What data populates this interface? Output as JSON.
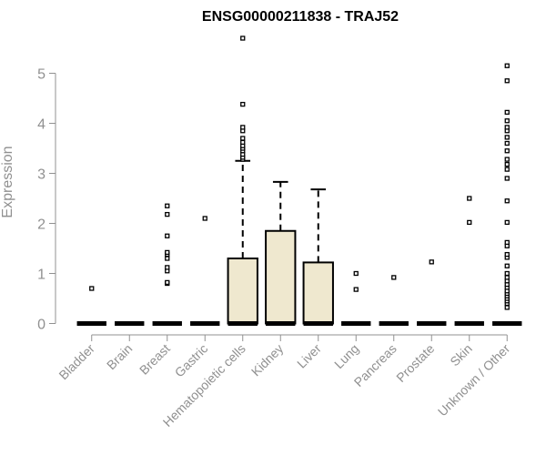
{
  "chart_data": {
    "type": "box",
    "title": "ENSG00000211838 - TRAJ52",
    "xlabel": "",
    "ylabel": "Expression",
    "ylim": [
      0,
      5.7
    ],
    "yticks": [
      0,
      1,
      2,
      3,
      4,
      5
    ],
    "grid": false,
    "legend": "none",
    "box_fill": "#efe8cf",
    "categories": [
      "Bladder",
      "Brain",
      "Breast",
      "Gastric",
      "Hematopoietic cells",
      "Kidney",
      "Liver",
      "Lung",
      "Pancreas",
      "Prostate",
      "Skin",
      "Unknown / Other"
    ],
    "boxes": [
      {
        "q1": 0,
        "median": 0,
        "q3": 0,
        "whisker_low": 0,
        "whisker_high": 0,
        "outliers": [
          0.7
        ]
      },
      {
        "q1": 0,
        "median": 0,
        "q3": 0,
        "whisker_low": 0,
        "whisker_high": 0,
        "outliers": []
      },
      {
        "q1": 0,
        "median": 0,
        "q3": 0,
        "whisker_low": 0,
        "whisker_high": 0,
        "outliers": [
          0.8,
          0.82,
          1.05,
          1.12,
          1.3,
          1.38,
          1.42,
          1.75,
          2.18,
          2.35
        ]
      },
      {
        "q1": 0,
        "median": 0,
        "q3": 0,
        "whisker_low": 0,
        "whisker_high": 0,
        "outliers": [
          2.1
        ]
      },
      {
        "q1": 0,
        "median": 0,
        "q3": 1.3,
        "whisker_low": 0,
        "whisker_high": 3.25,
        "outliers": [
          3.28,
          3.32,
          3.38,
          3.45,
          3.5,
          3.55,
          3.62,
          3.7,
          3.85,
          3.92,
          4.38,
          5.7
        ]
      },
      {
        "q1": 0,
        "median": 0,
        "q3": 1.85,
        "whisker_low": 0,
        "whisker_high": 2.83,
        "outliers": []
      },
      {
        "q1": 0,
        "median": 0,
        "q3": 1.22,
        "whisker_low": 0,
        "whisker_high": 2.68,
        "outliers": []
      },
      {
        "q1": 0,
        "median": 0,
        "q3": 0,
        "whisker_low": 0,
        "whisker_high": 0,
        "outliers": [
          0.68,
          1.0
        ]
      },
      {
        "q1": 0,
        "median": 0,
        "q3": 0,
        "whisker_low": 0,
        "whisker_high": 0,
        "outliers": [
          0.92
        ]
      },
      {
        "q1": 0,
        "median": 0,
        "q3": 0,
        "whisker_low": 0,
        "whisker_high": 0,
        "outliers": [
          1.23
        ]
      },
      {
        "q1": 0,
        "median": 0,
        "q3": 0,
        "whisker_low": 0,
        "whisker_high": 0,
        "outliers": [
          2.02,
          2.5
        ]
      },
      {
        "q1": 0,
        "median": 0,
        "q3": 0,
        "whisker_low": 0,
        "whisker_high": 0,
        "outliers": [
          0.32,
          0.4,
          0.45,
          0.5,
          0.55,
          0.6,
          0.65,
          0.72,
          0.78,
          0.85,
          0.92,
          1.0,
          1.15,
          1.32,
          1.38,
          1.55,
          1.62,
          2.02,
          2.45,
          2.9,
          3.08,
          3.18,
          3.28,
          3.45,
          3.6,
          3.72,
          3.85,
          3.92,
          4.05,
          4.22,
          4.85,
          5.15
        ]
      }
    ]
  }
}
